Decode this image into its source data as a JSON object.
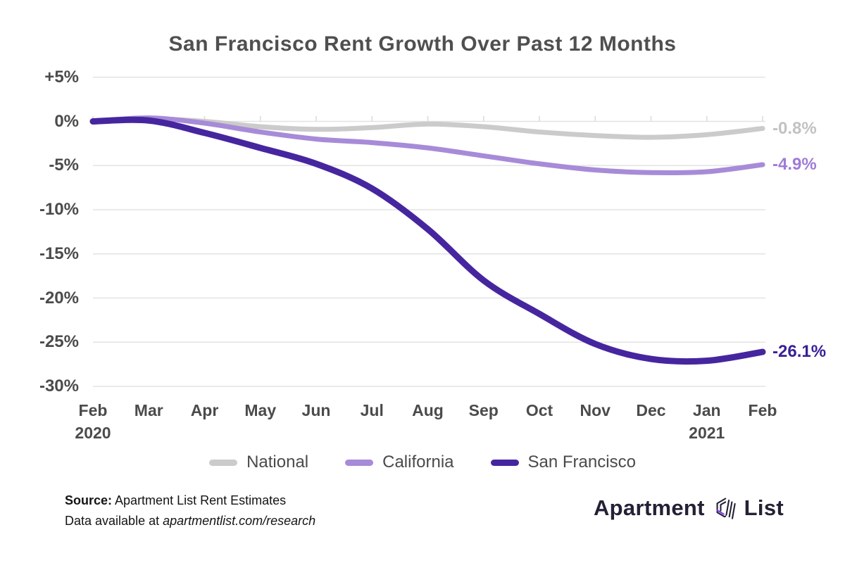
{
  "title": "San Francisco Rent Growth Over Past 12 Months",
  "chart_data": {
    "type": "line",
    "x_labels": [
      "Feb",
      "Mar",
      "Apr",
      "May",
      "Jun",
      "Jul",
      "Aug",
      "Sep",
      "Oct",
      "Nov",
      "Dec",
      "Jan",
      "Feb"
    ],
    "x_sublabels": {
      "0": "2020",
      "11": "2021"
    },
    "y_tick_labels": [
      "+5%",
      "0%",
      "-5%",
      "-10%",
      "-15%",
      "-20%",
      "-25%",
      "-30%"
    ],
    "y_tick_values": [
      5,
      0,
      -5,
      -10,
      -15,
      -20,
      -25,
      -30
    ],
    "ylim": [
      -30,
      5
    ],
    "grid": true,
    "legend_position": "bottom",
    "series": [
      {
        "name": "National",
        "color": "#cbcbcb",
        "end_label": "-0.8%",
        "end_label_color": "#c2c2c2",
        "line_width": 7,
        "values": [
          0.0,
          0.3,
          0.0,
          -0.6,
          -0.9,
          -0.7,
          -0.3,
          -0.6,
          -1.2,
          -1.6,
          -1.8,
          -1.5,
          -0.8
        ]
      },
      {
        "name": "California",
        "color": "#a78bd8",
        "end_label": "-4.9%",
        "end_label_color": "#9f7bd6",
        "line_width": 7,
        "values": [
          0.0,
          0.4,
          -0.2,
          -1.2,
          -2.0,
          -2.4,
          -3.0,
          -3.9,
          -4.8,
          -5.5,
          -5.8,
          -5.7,
          -4.9
        ]
      },
      {
        "name": "San Francisco",
        "color": "#46269f",
        "end_label": "-26.1%",
        "end_label_color": "#3a1f96",
        "line_width": 9,
        "values": [
          0.0,
          0.1,
          -1.3,
          -3.0,
          -4.8,
          -7.6,
          -12.2,
          -18.0,
          -21.8,
          -25.2,
          -26.9,
          -27.1,
          -26.1
        ]
      }
    ]
  },
  "footer": {
    "source_label": "Source:",
    "source_text": " Apartment List Rent Estimates",
    "data_prefix": "Data available at ",
    "data_link": "apartmentlist.com/research"
  },
  "logo": {
    "word_left": "Apartment",
    "word_right": "List",
    "icon_color": "#232135",
    "icon_accent": "#7c3aed"
  },
  "style": {
    "grid_color": "#e3e3e3",
    "tick_color": "#dcdcdc",
    "axis_text_color": "#4b4b4b"
  }
}
